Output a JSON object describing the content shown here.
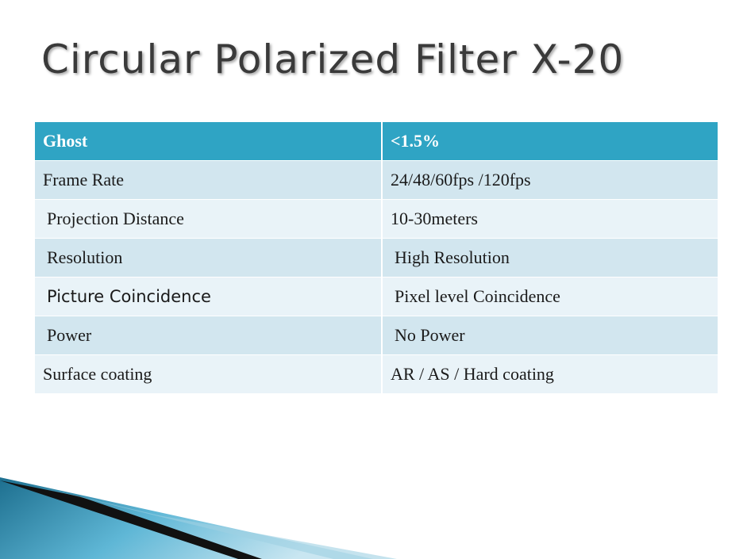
{
  "title": "Circular Polarized Filter X-20",
  "table": {
    "rows": [
      [
        "Ghost",
        "<1.5%"
      ],
      [
        "Frame Rate",
        "24/48/60fps /120fps"
      ],
      [
        "Projection Distance",
        "10-30meters"
      ],
      [
        "Resolution",
        "High Resolution"
      ],
      [
        "Picture Coincidence",
        "Pixel level Coincidence"
      ],
      [
        "Power",
        "No Power"
      ],
      [
        "Surface coating",
        "AR / AS / Hard coating"
      ]
    ]
  }
}
